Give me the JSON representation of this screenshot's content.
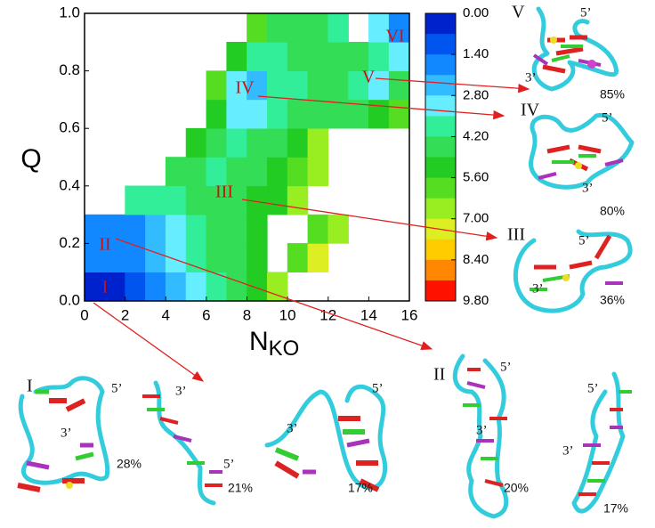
{
  "chart_data": {
    "type": "contour",
    "xlabel": "N",
    "xlabel_sub": "KO",
    "ylabel": "Q",
    "xlim": [
      0,
      16
    ],
    "ylim": [
      0,
      1
    ],
    "xticks": [
      0,
      2,
      4,
      6,
      8,
      10,
      12,
      14,
      16
    ],
    "yticks": [
      {
        "value": 0,
        "label": "0.0"
      },
      0.2,
      0.4,
      0.6,
      0.8,
      {
        "value": 1,
        "label": "1.0"
      }
    ],
    "x": [
      0.5,
      1.5,
      2.5,
      3.5,
      4.5,
      5.5,
      6.5,
      7.5,
      8.5,
      9.5,
      10.5,
      11.5,
      12.5,
      13.5,
      14.5,
      15.5
    ],
    "y": [
      0.05,
      0.15,
      0.25,
      0.35,
      0.45,
      0.55,
      0.65,
      0.75,
      0.85,
      0.95
    ],
    "z": [
      [
        0.3,
        0.6,
        1.2,
        1.8,
        2.5,
        3.2,
        4.0,
        4.5,
        5.0,
        6.5,
        null,
        null,
        null,
        null,
        null,
        null
      ],
      [
        1.6,
        1.5,
        1.8,
        2.4,
        3.2,
        3.8,
        4.4,
        4.8,
        5.5,
        null,
        5.8,
        7.2,
        null,
        null,
        null,
        null
      ],
      [
        1.8,
        1.7,
        2.0,
        2.6,
        3.3,
        3.8,
        4.3,
        4.6,
        5.2,
        null,
        null,
        5.6,
        6.8,
        null,
        null,
        null
      ],
      [
        null,
        null,
        3.6,
        3.8,
        4.0,
        4.2,
        4.4,
        4.8,
        5.0,
        5.4,
        6.5,
        null,
        null,
        null,
        null,
        null
      ],
      [
        null,
        null,
        null,
        null,
        4.6,
        4.2,
        4.0,
        4.3,
        4.6,
        5.0,
        5.6,
        6.8,
        null,
        null,
        null,
        null
      ],
      [
        null,
        null,
        null,
        null,
        null,
        5.2,
        4.4,
        3.8,
        4.2,
        4.6,
        5.2,
        6.6,
        null,
        null,
        null,
        null
      ],
      [
        null,
        null,
        null,
        null,
        null,
        null,
        5.0,
        3.4,
        3.0,
        3.8,
        4.2,
        4.4,
        4.6,
        4.8,
        5.0,
        6.0
      ],
      [
        null,
        null,
        null,
        null,
        null,
        null,
        5.6,
        2.9,
        2.6,
        3.6,
        4.0,
        4.2,
        4.6,
        3.6,
        2.9,
        4.4
      ],
      [
        null,
        null,
        null,
        null,
        null,
        null,
        null,
        5.0,
        3.6,
        4.0,
        4.2,
        4.6,
        4.8,
        4.4,
        3.8,
        3.4
      ],
      [
        null,
        null,
        null,
        null,
        null,
        null,
        null,
        null,
        6.0,
        4.8,
        4.4,
        4.2,
        3.6,
        null,
        2.8,
        1.6
      ]
    ],
    "colorbar": {
      "lim": [
        0,
        9.8
      ],
      "ticks": [
        {
          "value": 0,
          "label": "0.00"
        },
        {
          "value": 1.4,
          "label": "1.40"
        },
        {
          "value": 2.8,
          "label": "2.80"
        },
        {
          "value": 4.2,
          "label": "4.20"
        },
        {
          "value": 5.6,
          "label": "5.60"
        },
        {
          "value": 7,
          "label": "7.00"
        },
        {
          "value": 8.4,
          "label": "8.40"
        },
        {
          "value": 9.8,
          "label": "9.80"
        }
      ],
      "colors": [
        "#0022cc",
        "#0055ee",
        "#1188ff",
        "#33bbff",
        "#66eeff",
        "#33ee99",
        "#33dd55",
        "#22cc22",
        "#55dd22",
        "#99ee22",
        "#ddee22",
        "#ffcc00",
        "#ff8800",
        "#ff1100"
      ]
    },
    "annotations": [
      "I",
      "II",
      "III",
      "IV",
      "V",
      "VI"
    ]
  },
  "structures": [
    {
      "label": "V",
      "five_prime": "5’",
      "three_prime": "3’",
      "percent": "85%"
    },
    {
      "label": "IV",
      "five_prime": "5’",
      "three_prime": "3’",
      "percent": "80%"
    },
    {
      "label": "III",
      "five_prime": "5’",
      "three_prime": "3’",
      "percent": "36%"
    },
    {
      "label": "I",
      "five_prime": "5’",
      "three_prime": "3’",
      "percent": "28%"
    },
    {
      "five_prime": "5’",
      "three_prime": "3’",
      "percent": "21%"
    },
    {
      "five_prime": "5’",
      "three_prime": "3’",
      "percent": "17%"
    },
    {
      "label": "II",
      "five_prime": "5’",
      "three_prime": "3’",
      "percent": "20%"
    },
    {
      "five_prime": "5’",
      "three_prime": "3’",
      "percent": "17%"
    }
  ]
}
